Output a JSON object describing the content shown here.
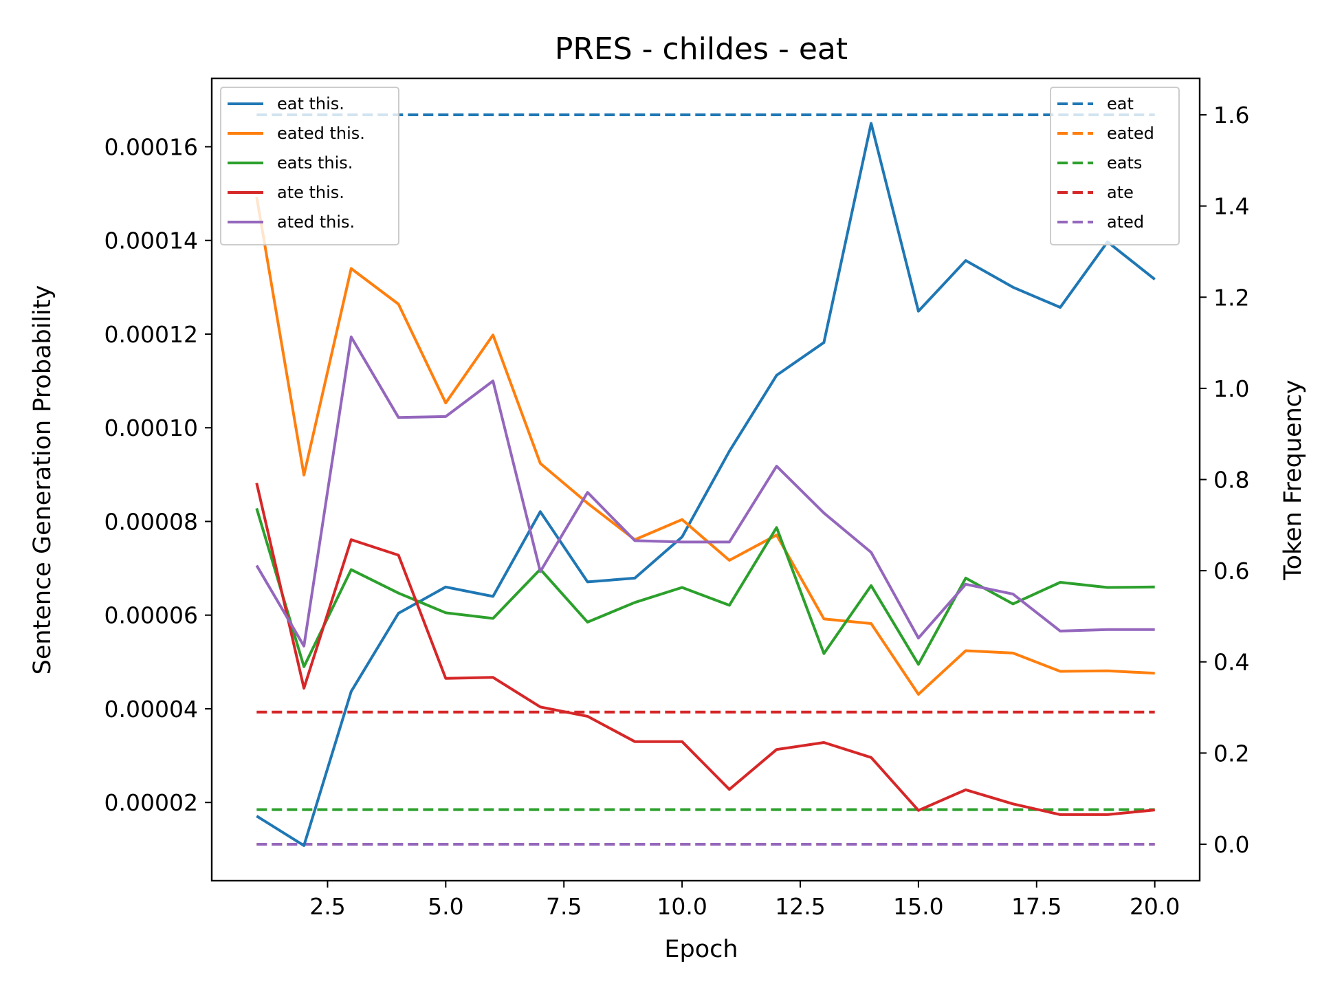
{
  "chart_data": {
    "type": "line",
    "title": "PRES - childes - eat",
    "xlabel": "Epoch",
    "ylabel": "Sentence Generation Probability",
    "y2label": "Token Frequency",
    "xlim": [
      0.05,
      20.95
    ],
    "ylim": [
      3.3e-06,
      0.0001746
    ],
    "y2lim": [
      -0.08,
      1.68
    ],
    "x_ticks": [
      "2.5",
      "5.0",
      "7.5",
      "10.0",
      "12.5",
      "15.0",
      "17.5",
      "20.0"
    ],
    "x_tick_values": [
      2.5,
      5.0,
      7.5,
      10.0,
      12.5,
      15.0,
      17.5,
      20.0
    ],
    "y_ticks": [
      "0.00002",
      "0.00004",
      "0.00006",
      "0.00008",
      "0.00010",
      "0.00012",
      "0.00014",
      "0.00016"
    ],
    "y_tick_values": [
      2e-05,
      4e-05,
      6e-05,
      8e-05,
      0.0001,
      0.00012,
      0.00014,
      0.00016
    ],
    "y2_ticks": [
      "0.0",
      "0.2",
      "0.4",
      "0.6",
      "0.8",
      "1.0",
      "1.2",
      "1.4",
      "1.6"
    ],
    "y2_tick_values": [
      0.0,
      0.2,
      0.4,
      0.6,
      0.8,
      1.0,
      1.2,
      1.4,
      1.6
    ],
    "grid": false,
    "legend_left_position": "top-left",
    "legend_right_position": "top-right",
    "x": [
      1,
      2,
      3,
      4,
      5,
      6,
      7,
      8,
      9,
      10,
      11,
      12,
      13,
      14,
      15,
      16,
      17,
      18,
      19,
      20
    ],
    "series": [
      {
        "name": "eat this.",
        "color": "#1f77b4",
        "axis": "left",
        "values": [
          1.71e-05,
          1.08e-05,
          4.37e-05,
          6.04e-05,
          6.6e-05,
          6.4e-05,
          8.21e-05,
          6.71e-05,
          6.79e-05,
          7.67e-05,
          9.5e-05,
          0.0001112,
          0.0001182,
          0.000165,
          0.0001249,
          0.0001357,
          0.00013,
          0.0001257,
          0.0001397,
          0.0001317
        ]
      },
      {
        "name": "eated this.",
        "color": "#ff7f0e",
        "axis": "left",
        "values": [
          0.0001493,
          8.99e-05,
          0.000134,
          0.0001264,
          0.0001053,
          0.0001198,
          9.24e-05,
          8.39e-05,
          7.61e-05,
          8.04e-05,
          7.17e-05,
          7.71e-05,
          5.92e-05,
          5.82e-05,
          4.31e-05,
          5.24e-05,
          5.19e-05,
          4.8e-05,
          4.81e-05,
          4.76e-05
        ]
      },
      {
        "name": "eats this.",
        "color": "#2ca02c",
        "axis": "left",
        "values": [
          8.28e-05,
          4.9e-05,
          6.97e-05,
          6.47e-05,
          6.05e-05,
          5.93e-05,
          6.98e-05,
          5.85e-05,
          6.27e-05,
          6.59e-05,
          6.21e-05,
          7.87e-05,
          5.18e-05,
          6.63e-05,
          4.95e-05,
          6.79e-05,
          6.24e-05,
          6.7e-05,
          6.59e-05,
          6.6e-05
        ]
      },
      {
        "name": "ate this.",
        "color": "#d62728",
        "axis": "left",
        "values": [
          8.82e-05,
          4.44e-05,
          7.61e-05,
          7.28e-05,
          4.65e-05,
          4.67e-05,
          4.04e-05,
          3.84e-05,
          3.3e-05,
          3.3e-05,
          2.28e-05,
          3.13e-05,
          3.28e-05,
          2.96e-05,
          1.83e-05,
          2.27e-05,
          1.97e-05,
          1.74e-05,
          1.74e-05,
          1.84e-05
        ]
      },
      {
        "name": "ated this.",
        "color": "#9467bd",
        "axis": "left",
        "values": [
          7.06e-05,
          5.34e-05,
          0.0001194,
          0.0001022,
          0.0001024,
          0.00011,
          6.93e-05,
          8.62e-05,
          7.59e-05,
          7.56e-05,
          7.56e-05,
          9.18e-05,
          8.18e-05,
          7.34e-05,
          5.51e-05,
          6.66e-05,
          6.45e-05,
          5.66e-05,
          5.69e-05,
          5.69e-05
        ]
      },
      {
        "name": "eat",
        "color": "#1f77b4",
        "axis": "right",
        "dashed": true,
        "values": [
          1.6,
          1.6,
          1.6,
          1.6,
          1.6,
          1.6,
          1.6,
          1.6,
          1.6,
          1.6,
          1.6,
          1.6,
          1.6,
          1.6,
          1.6,
          1.6,
          1.6,
          1.6,
          1.6,
          1.6
        ]
      },
      {
        "name": "eated",
        "color": "#ff7f0e",
        "axis": "right",
        "dashed": true,
        "values": [
          0,
          0,
          0,
          0,
          0,
          0,
          0,
          0,
          0,
          0,
          0,
          0,
          0,
          0,
          0,
          0,
          0,
          0,
          0,
          0
        ]
      },
      {
        "name": "eats",
        "color": "#2ca02c",
        "axis": "right",
        "dashed": true,
        "values": [
          0.076,
          0.076,
          0.076,
          0.076,
          0.076,
          0.076,
          0.076,
          0.076,
          0.076,
          0.076,
          0.076,
          0.076,
          0.076,
          0.076,
          0.076,
          0.076,
          0.076,
          0.076,
          0.076,
          0.076
        ]
      },
      {
        "name": "ate",
        "color": "#d62728",
        "axis": "right",
        "dashed": true,
        "values": [
          0.29,
          0.29,
          0.29,
          0.29,
          0.29,
          0.29,
          0.29,
          0.29,
          0.29,
          0.29,
          0.29,
          0.29,
          0.29,
          0.29,
          0.29,
          0.29,
          0.29,
          0.29,
          0.29,
          0.29
        ]
      },
      {
        "name": "ated",
        "color": "#9467bd",
        "axis": "right",
        "dashed": true,
        "values": [
          0,
          0,
          0,
          0,
          0,
          0,
          0,
          0,
          0,
          0,
          0,
          0,
          0,
          0,
          0,
          0,
          0,
          0,
          0,
          0
        ]
      }
    ]
  }
}
